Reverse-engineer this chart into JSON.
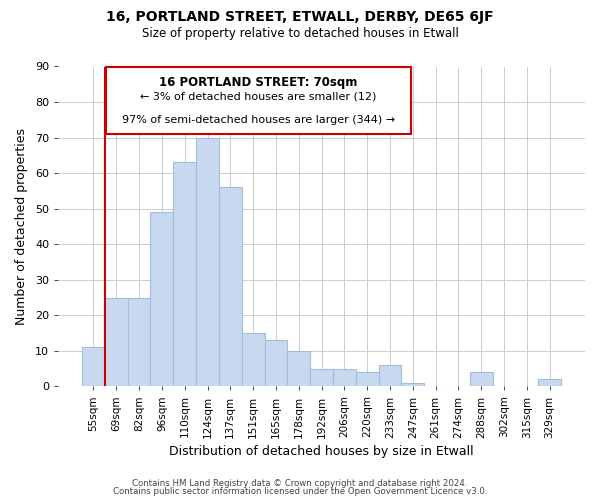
{
  "title": "16, PORTLAND STREET, ETWALL, DERBY, DE65 6JF",
  "subtitle": "Size of property relative to detached houses in Etwall",
  "xlabel": "Distribution of detached houses by size in Etwall",
  "ylabel": "Number of detached properties",
  "bar_labels": [
    "55sqm",
    "69sqm",
    "82sqm",
    "96sqm",
    "110sqm",
    "124sqm",
    "137sqm",
    "151sqm",
    "165sqm",
    "178sqm",
    "192sqm",
    "206sqm",
    "220sqm",
    "233sqm",
    "247sqm",
    "261sqm",
    "274sqm",
    "288sqm",
    "302sqm",
    "315sqm",
    "329sqm"
  ],
  "bar_values": [
    11,
    25,
    25,
    49,
    63,
    70,
    56,
    15,
    13,
    10,
    5,
    5,
    4,
    6,
    1,
    0,
    0,
    4,
    0,
    0,
    2
  ],
  "bar_color": "#c8d9ef",
  "bar_edge_color": "#a0bedc",
  "vline_color": "#cc0000",
  "annotation_title": "16 PORTLAND STREET: 70sqm",
  "annotation_line1": "← 3% of detached houses are smaller (12)",
  "annotation_line2": "97% of semi-detached houses are larger (344) →",
  "annotation_box_edge": "#cc0000",
  "ylim": [
    0,
    90
  ],
  "yticks": [
    0,
    10,
    20,
    30,
    40,
    50,
    60,
    70,
    80,
    90
  ],
  "footer_line1": "Contains HM Land Registry data © Crown copyright and database right 2024.",
  "footer_line2": "Contains public sector information licensed under the Open Government Licence v3.0."
}
